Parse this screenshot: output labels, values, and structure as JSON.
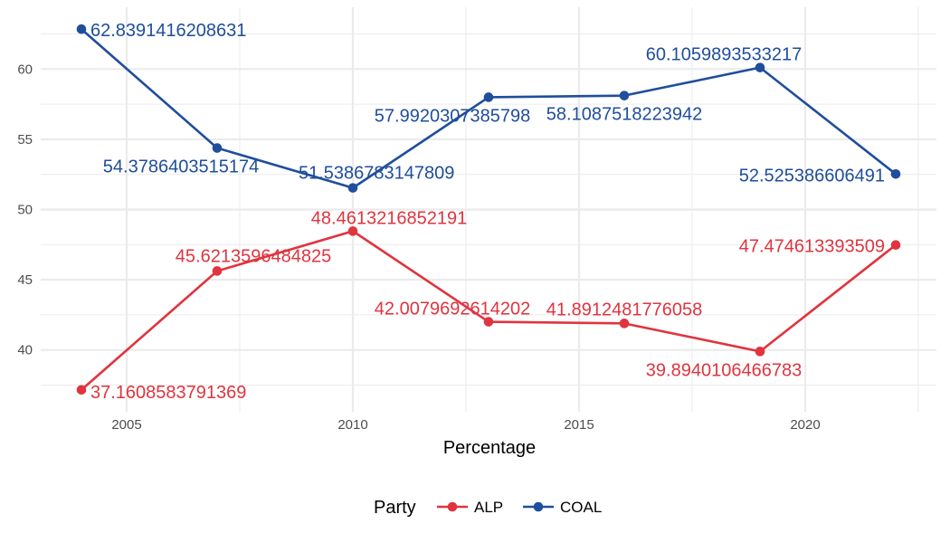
{
  "chart_data": {
    "type": "line",
    "xlabel": "Percentage",
    "ylabel": "",
    "x": [
      2004,
      2007,
      2010,
      2013,
      2016,
      2019,
      2022
    ],
    "xlim": [
      2003.1,
      2022.9
    ],
    "ylim": [
      35.6,
      64.4
    ],
    "x_ticks": [
      2005,
      2010,
      2015,
      2020
    ],
    "x_tick_labels": [
      "2005",
      "2010",
      "2015",
      "2020"
    ],
    "y_ticks": [
      40,
      45,
      50,
      55,
      60
    ],
    "y_tick_labels": [
      "40",
      "45",
      "50",
      "55",
      "60"
    ],
    "grid": true,
    "legend_position": "bottom",
    "legend_title": "Party",
    "series": [
      {
        "name": "ALP",
        "color": "#e0343f",
        "values": [
          37.1608583791369,
          45.6213596484825,
          48.4613216852191,
          42.0079692614202,
          41.8912481776058,
          39.8940106466783,
          47.474613393509
        ],
        "labels": [
          "37.1608583791369",
          "45.6213596484825",
          "48.4613216852191",
          "42.0079692614202",
          "41.8912481776058",
          "39.8940106466783",
          "47.474613393509"
        ]
      },
      {
        "name": "COAL",
        "color": "#1f4e9c",
        "values": [
          62.8391416208631,
          54.3786403515174,
          51.5386783147809,
          57.9920307385798,
          58.1087518223942,
          60.1059893533217,
          52.525386606491
        ],
        "labels": [
          "62.8391416208631",
          "54.3786403515174",
          "51.5386783147809",
          "57.9920307385798",
          "58.1087518223942",
          "60.1059893533217",
          "52.525386606491"
        ]
      }
    ]
  }
}
